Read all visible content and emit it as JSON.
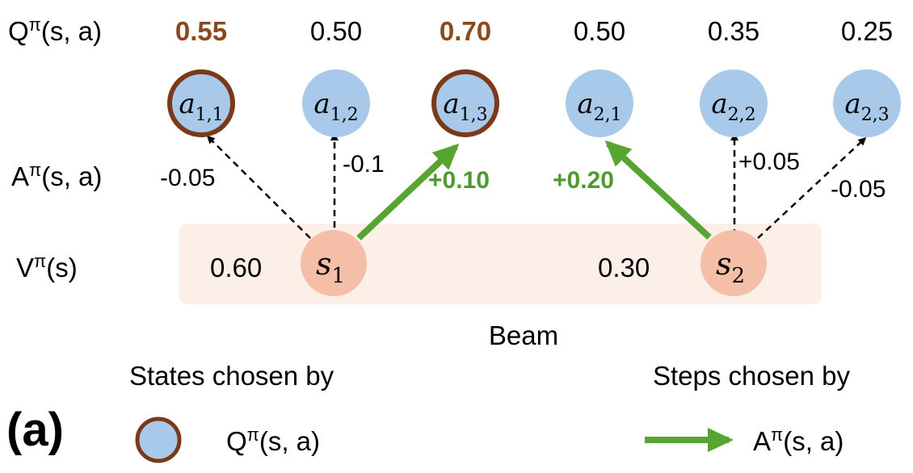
{
  "row_labels": {
    "q": {
      "base": "Q",
      "sup": "π",
      "args": "(s, a)"
    },
    "a": {
      "base": "A",
      "sup": "π",
      "args": "(s, a)"
    },
    "v": {
      "base": "V",
      "sup": "π",
      "args": "(s)"
    }
  },
  "actions": [
    {
      "base": "a",
      "sub": "1,1",
      "q": "0.55",
      "adv": "-0.05",
      "chosen_state": true,
      "chosen_step": false
    },
    {
      "base": "a",
      "sub": "1,2",
      "q": "0.50",
      "adv": "-0.1",
      "chosen_state": false,
      "chosen_step": false
    },
    {
      "base": "a",
      "sub": "1,3",
      "q": "0.70",
      "adv": "+0.10",
      "chosen_state": true,
      "chosen_step": true
    },
    {
      "base": "a",
      "sub": "2,1",
      "q": "0.50",
      "adv": "+0.20",
      "chosen_state": false,
      "chosen_step": true
    },
    {
      "base": "a",
      "sub": "2,2",
      "q": "0.35",
      "adv": "+0.05",
      "chosen_state": false,
      "chosen_step": false
    },
    {
      "base": "a",
      "sub": "2,3",
      "q": "0.25",
      "adv": "-0.05",
      "chosen_state": false,
      "chosen_step": false
    }
  ],
  "states": [
    {
      "base": "s",
      "sub": "1",
      "v": "0.60"
    },
    {
      "base": "s",
      "sub": "2",
      "v": "0.30"
    }
  ],
  "beam_label": "Beam",
  "panel_label": "(a)",
  "legend": {
    "states_text": "States chosen by",
    "states_metric": {
      "base": "Q",
      "sup": "π",
      "args": "(s, a)"
    },
    "steps_text": "Steps chosen by",
    "steps_metric": {
      "base": "A",
      "sup": "π",
      "args": "(s, a)"
    }
  },
  "colors": {
    "action_node": "#a9c9ea",
    "state_node": "#f4bfa6",
    "beam_fill": "#fcefe8",
    "chosen_ring": "#7a3a1a",
    "chosen_q_text": "#8b4a1e",
    "green_arrow": "#56a532",
    "green_text": "#4f9a30",
    "text": "#000000"
  }
}
